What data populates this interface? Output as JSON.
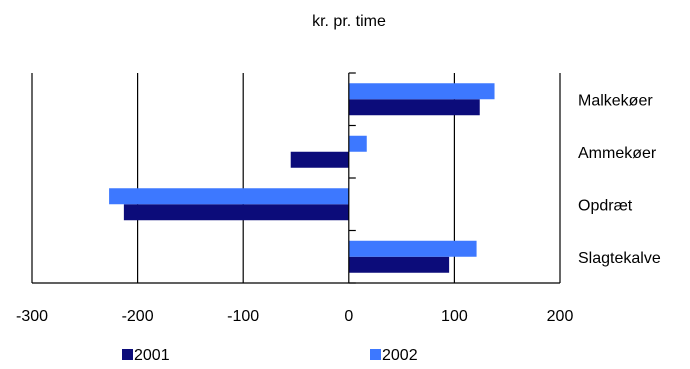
{
  "chart_data": {
    "type": "bar",
    "orientation": "horizontal",
    "title": "kr. pr. time",
    "xlabel": "",
    "ylabel": "",
    "categories": [
      "Malkekøer",
      "Ammekøer",
      "Opdræt",
      "Slagtekalve"
    ],
    "series": [
      {
        "name": "2001",
        "color": "#0c0c7a",
        "values": [
          124,
          -55,
          -213,
          95
        ]
      },
      {
        "name": "2002",
        "color": "#3d78ff",
        "values": [
          138,
          17,
          -227,
          121
        ]
      }
    ],
    "xlim": [
      -300,
      200
    ],
    "xticks": [
      "-300",
      "-200",
      "-100",
      "0",
      "100",
      "200"
    ],
    "grid": "vertical",
    "legend": "bottom"
  }
}
